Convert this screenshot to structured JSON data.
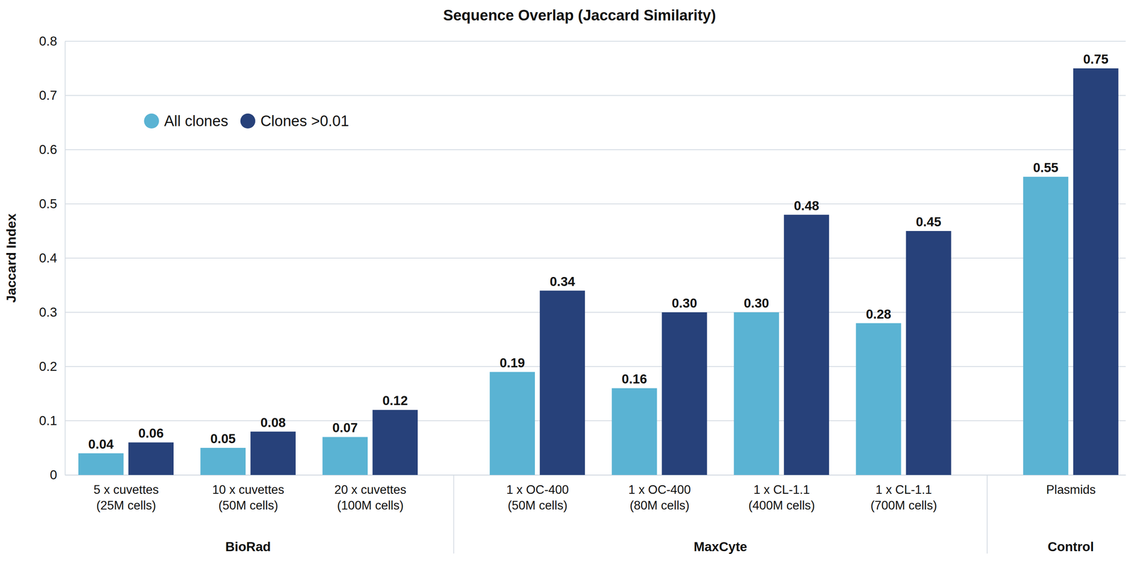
{
  "chart_data": {
    "type": "bar",
    "title": "Sequence Overlap (Jaccard Similarity)",
    "y_label": "Jaccard Index",
    "categories": [
      "5 x cuvettes\n(25M cells)",
      "10 x cuvettes\n(50M cells)",
      "20 x cuvettes\n(100M cells)",
      "1 x OC-400\n(50M cells)",
      "1 x OC-400\n(80M cells)",
      "1 x CL-1.1\n(400M cells)",
      "1 x CL-1.1\n(700M cells)",
      "Plasmids"
    ],
    "groups": [
      {
        "label": "BioRad",
        "count": 3
      },
      {
        "label": "MaxCyte",
        "count": 4
      },
      {
        "label": "Control",
        "count": 1
      }
    ],
    "series": [
      {
        "name": "All clones",
        "color": "#5ab3d3",
        "values": [
          0.04,
          0.05,
          0.07,
          0.19,
          0.16,
          0.3,
          0.28,
          0.55
        ],
        "value_labels": [
          "0.04",
          "0.05",
          "0.07",
          "0.19",
          "0.16",
          "0.30",
          "0.28",
          "0.55"
        ]
      },
      {
        "name": "Clones >0.01",
        "color": "#27417a",
        "values": [
          0.06,
          0.08,
          0.12,
          0.34,
          0.3,
          0.48,
          0.45,
          0.75
        ],
        "value_labels": [
          "0.06",
          "0.08",
          "0.12",
          "0.34",
          "0.30",
          "0.48",
          "0.45",
          "0.75"
        ]
      }
    ],
    "ylim": [
      0,
      0.8
    ],
    "yticks": [
      0,
      0.1,
      0.2,
      0.3,
      0.4,
      0.5,
      0.6,
      0.7,
      0.8
    ],
    "grid": true,
    "legend": "upper left",
    "data_labels": true
  }
}
